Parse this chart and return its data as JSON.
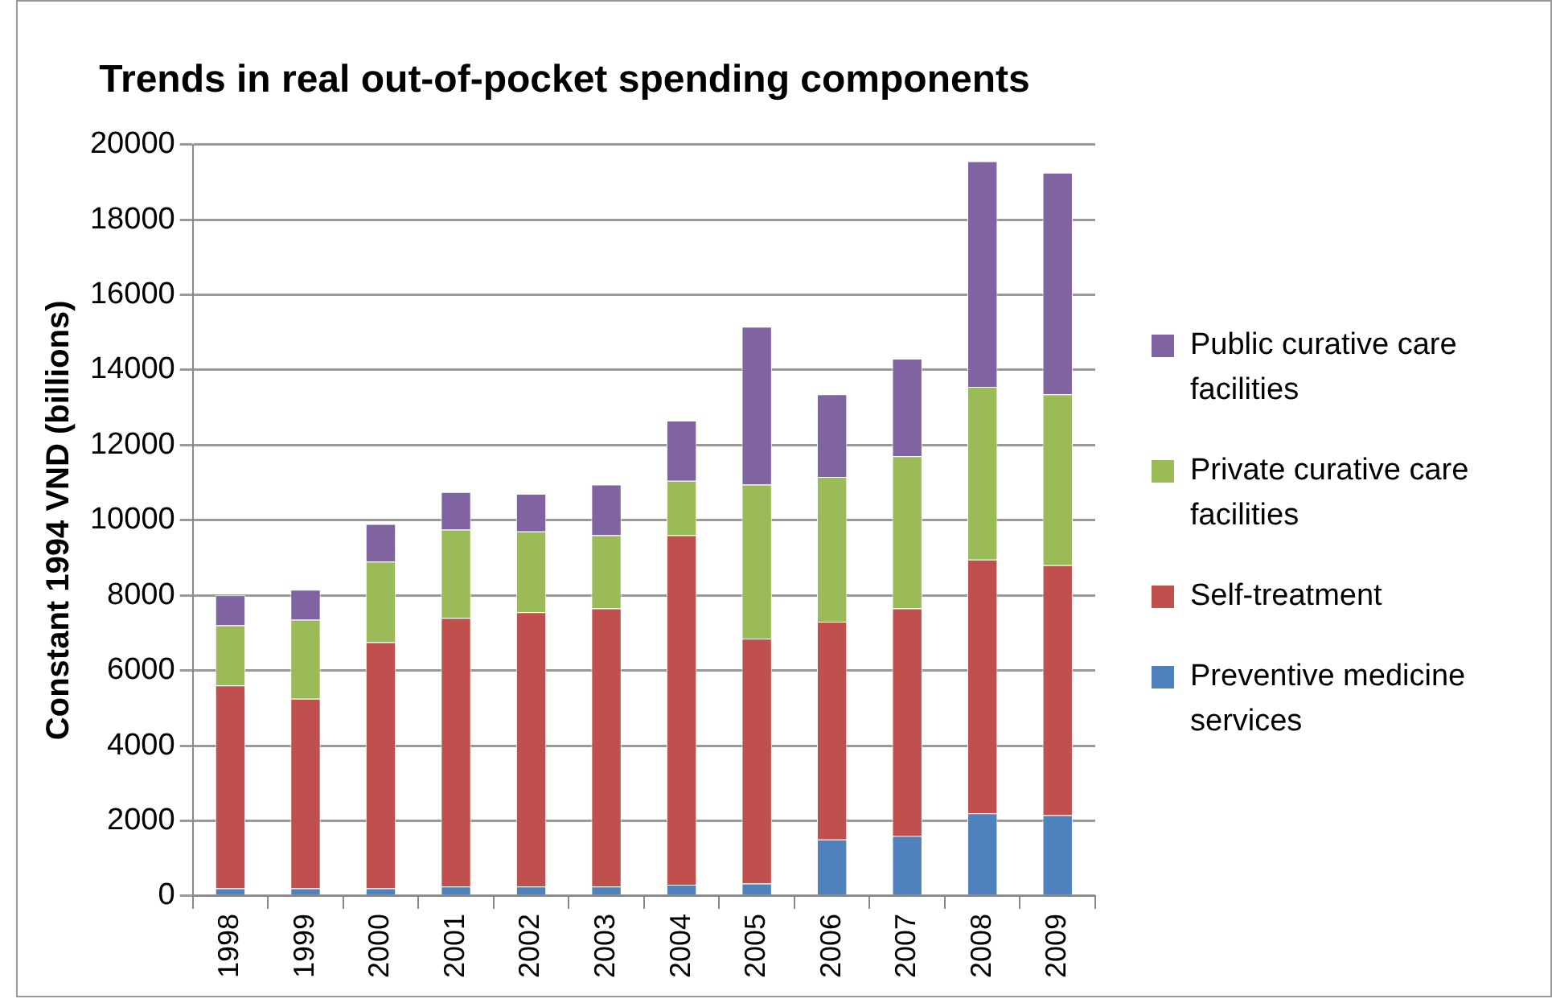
{
  "chart_data": {
    "type": "bar",
    "title": "Trends in real out-of-pocket spending components",
    "ylabel": "Constant 1994 VND (billions)",
    "categories": [
      "1998",
      "1999",
      "2000",
      "2001",
      "2002",
      "2003",
      "2004",
      "2005",
      "2006",
      "2007",
      "2008",
      "2009"
    ],
    "stacked": true,
    "ylim": [
      0,
      20000
    ],
    "yticks": [
      0,
      2000,
      4000,
      6000,
      8000,
      10000,
      12000,
      14000,
      16000,
      18000,
      20000
    ],
    "grid": "y",
    "legend": "right",
    "series": [
      {
        "name": "Preventive medicine services",
        "color": "#4f81bd",
        "values": [
          200,
          200,
          200,
          250,
          250,
          250,
          300,
          330,
          1500,
          1600,
          2200,
          2150
        ]
      },
      {
        "name": "Self-treatment",
        "color": "#c0504d",
        "values": [
          5400,
          5050,
          6550,
          7150,
          7300,
          7400,
          9300,
          6520,
          5800,
          6050,
          6750,
          6650
        ]
      },
      {
        "name": "Private curative care facilities",
        "color": "#9bbb59",
        "values": [
          1600,
          2100,
          2150,
          2350,
          2150,
          1950,
          1450,
          4100,
          3850,
          4050,
          4600,
          4550
        ]
      },
      {
        "name": "Public curative care facilities",
        "color": "#8064a2",
        "values": [
          800,
          800,
          1000,
          1000,
          1000,
          1350,
          1600,
          4200,
          2200,
          2600,
          6000,
          5900
        ]
      }
    ]
  }
}
